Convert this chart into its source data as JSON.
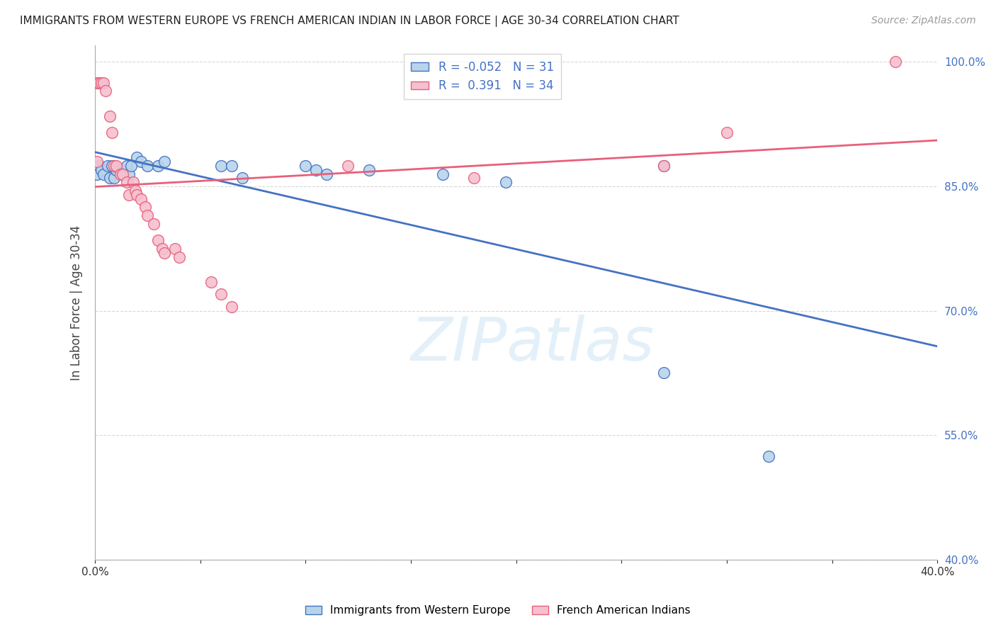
{
  "title": "IMMIGRANTS FROM WESTERN EUROPE VS FRENCH AMERICAN INDIAN IN LABOR FORCE | AGE 30-34 CORRELATION CHART",
  "source": "Source: ZipAtlas.com",
  "ylabel": "In Labor Force | Age 30-34",
  "x_min": 0.0,
  "x_max": 0.4,
  "y_min": 0.4,
  "y_max": 1.02,
  "y_ticks": [
    0.4,
    0.55,
    0.7,
    0.85,
    1.0
  ],
  "y_tick_labels": [
    "40.0%",
    "55.0%",
    "70.0%",
    "85.0%",
    "100.0%"
  ],
  "blue_R": "-0.052",
  "blue_N": "31",
  "pink_R": "0.391",
  "pink_N": "34",
  "blue_color": "#b8d4ea",
  "pink_color": "#f5c0d0",
  "blue_line_color": "#4472c4",
  "pink_line_color": "#e8607a",
  "blue_scatter": [
    [
      0.001,
      0.865
    ],
    [
      0.002,
      0.875
    ],
    [
      0.003,
      0.87
    ],
    [
      0.004,
      0.865
    ],
    [
      0.006,
      0.875
    ],
    [
      0.007,
      0.86
    ],
    [
      0.008,
      0.875
    ],
    [
      0.009,
      0.86
    ],
    [
      0.01,
      0.87
    ],
    [
      0.012,
      0.87
    ],
    [
      0.013,
      0.865
    ],
    [
      0.015,
      0.875
    ],
    [
      0.016,
      0.865
    ],
    [
      0.017,
      0.875
    ],
    [
      0.02,
      0.885
    ],
    [
      0.022,
      0.88
    ],
    [
      0.025,
      0.875
    ],
    [
      0.03,
      0.875
    ],
    [
      0.033,
      0.88
    ],
    [
      0.06,
      0.875
    ],
    [
      0.065,
      0.875
    ],
    [
      0.1,
      0.875
    ],
    [
      0.105,
      0.87
    ],
    [
      0.11,
      0.865
    ],
    [
      0.165,
      0.865
    ],
    [
      0.195,
      0.855
    ],
    [
      0.27,
      0.875
    ],
    [
      0.27,
      0.625
    ],
    [
      0.32,
      0.525
    ],
    [
      0.13,
      0.87
    ],
    [
      0.07,
      0.86
    ]
  ],
  "pink_scatter": [
    [
      0.001,
      0.975
    ],
    [
      0.002,
      0.975
    ],
    [
      0.003,
      0.975
    ],
    [
      0.004,
      0.975
    ],
    [
      0.005,
      0.965
    ],
    [
      0.007,
      0.935
    ],
    [
      0.008,
      0.915
    ],
    [
      0.009,
      0.875
    ],
    [
      0.01,
      0.875
    ],
    [
      0.012,
      0.865
    ],
    [
      0.013,
      0.865
    ],
    [
      0.015,
      0.855
    ],
    [
      0.016,
      0.84
    ],
    [
      0.018,
      0.855
    ],
    [
      0.019,
      0.845
    ],
    [
      0.02,
      0.84
    ],
    [
      0.022,
      0.835
    ],
    [
      0.024,
      0.825
    ],
    [
      0.025,
      0.815
    ],
    [
      0.028,
      0.805
    ],
    [
      0.03,
      0.785
    ],
    [
      0.032,
      0.775
    ],
    [
      0.033,
      0.77
    ],
    [
      0.038,
      0.775
    ],
    [
      0.04,
      0.765
    ],
    [
      0.055,
      0.735
    ],
    [
      0.06,
      0.72
    ],
    [
      0.065,
      0.705
    ],
    [
      0.12,
      0.875
    ],
    [
      0.18,
      0.86
    ],
    [
      0.27,
      0.875
    ],
    [
      0.3,
      0.915
    ],
    [
      0.38,
      1.0
    ],
    [
      0.001,
      0.88
    ]
  ],
  "watermark_text": "ZIPatlas",
  "background_color": "#ffffff",
  "grid_color": "#d8d8d8"
}
